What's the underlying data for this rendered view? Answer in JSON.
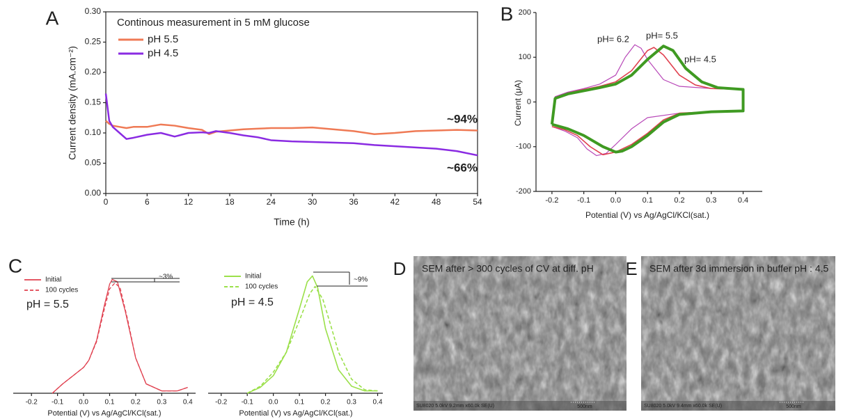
{
  "chart_data": [
    {
      "type": "line",
      "panel_label": "A",
      "title": "Continous measurement in 5 mM glucose",
      "x_label": "Time (h)",
      "y_label": "Current density (mA.cm⁻²)",
      "x": [
        0,
        0.5,
        1,
        2,
        3,
        4,
        6,
        8,
        10,
        12,
        14,
        15,
        16,
        18,
        20,
        22,
        24,
        27,
        30,
        33,
        36,
        39,
        42,
        45,
        48,
        51,
        54
      ],
      "series": [
        {
          "name": "pH 5.5",
          "color": "#ef7a55",
          "values": [
            0.12,
            0.115,
            0.112,
            0.11,
            0.108,
            0.11,
            0.11,
            0.114,
            0.112,
            0.108,
            0.105,
            0.098,
            0.102,
            0.104,
            0.106,
            0.107,
            0.108,
            0.108,
            0.109,
            0.106,
            0.103,
            0.098,
            0.1,
            0.103,
            0.104,
            0.105,
            0.104
          ]
        },
        {
          "name": "pH 4.5",
          "color": "#8a2be2",
          "values": [
            0.165,
            0.12,
            0.11,
            0.1,
            0.09,
            0.092,
            0.097,
            0.1,
            0.094,
            0.1,
            0.101,
            0.1,
            0.103,
            0.1,
            0.096,
            0.093,
            0.088,
            0.086,
            0.085,
            0.084,
            0.083,
            0.08,
            0.078,
            0.076,
            0.074,
            0.07,
            0.063
          ]
        }
      ],
      "annotations": [
        "~94%",
        "~66%"
      ],
      "xlim": [
        0,
        54
      ],
      "xticks": [
        0,
        6,
        12,
        18,
        24,
        30,
        36,
        42,
        48,
        54
      ],
      "ylim": [
        0,
        0.3
      ],
      "yticks": [
        {
          "value": 0,
          "label": "0.00"
        },
        {
          "value": 0.05,
          "label": "0.05"
        },
        {
          "value": 0.1,
          "label": "0.10"
        },
        {
          "value": 0.15,
          "label": "0.15"
        },
        {
          "value": 0.2,
          "label": "0.20"
        },
        {
          "value": 0.25,
          "label": "0.25"
        },
        {
          "value": 0.3,
          "label": "0.30"
        }
      ]
    },
    {
      "type": "line",
      "panel_label": "B",
      "x_label": "Potential (V) vs Ag/AgCl/KCl(sat.)",
      "y_label": "Current (μA)",
      "series": [
        {
          "name": "pH= 6.2",
          "color": "#b848b8",
          "x": [
            -0.2,
            -0.19,
            -0.15,
            -0.1,
            -0.05,
            0,
            0.03,
            0.06,
            0.08,
            0.1,
            0.15,
            0.2,
            0.3,
            0.4,
            0.4,
            0.3,
            0.2,
            0.1,
            0.05,
            0,
            -0.03,
            -0.06,
            -0.09,
            -0.12,
            -0.16,
            -0.2
          ],
          "values": [
            -50,
            12,
            22,
            30,
            40,
            60,
            100,
            128,
            120,
            95,
            50,
            35,
            30,
            28,
            -20,
            -22,
            -25,
            -35,
            -60,
            -95,
            -115,
            -120,
            -105,
            -80,
            -65,
            -55
          ]
        },
        {
          "name": "pH= 5.5",
          "color": "#e0404f",
          "x": [
            -0.2,
            -0.19,
            -0.15,
            -0.1,
            -0.05,
            0,
            0.05,
            0.1,
            0.12,
            0.15,
            0.2,
            0.25,
            0.3,
            0.4,
            0.4,
            0.3,
            0.2,
            0.15,
            0.1,
            0.05,
            0,
            -0.04,
            -0.08,
            -0.12,
            -0.16,
            -0.2
          ],
          "values": [
            -50,
            10,
            20,
            28,
            35,
            45,
            70,
            115,
            122,
            105,
            60,
            38,
            30,
            28,
            -20,
            -22,
            -25,
            -40,
            -70,
            -95,
            -112,
            -118,
            -100,
            -75,
            -62,
            -55
          ]
        },
        {
          "name": "pH= 4.5",
          "color": "#3f9a22",
          "x": [
            -0.2,
            -0.19,
            -0.15,
            -0.1,
            -0.05,
            0,
            0.05,
            0.1,
            0.15,
            0.18,
            0.22,
            0.27,
            0.32,
            0.4,
            0.4,
            0.3,
            0.2,
            0.15,
            0.1,
            0.05,
            0.02,
            0,
            -0.04,
            -0.1,
            -0.15,
            -0.2
          ],
          "values": [
            -50,
            8,
            18,
            25,
            32,
            40,
            60,
            95,
            125,
            115,
            75,
            45,
            32,
            28,
            -20,
            -22,
            -28,
            -45,
            -75,
            -100,
            -110,
            -112,
            -100,
            -75,
            -60,
            -50
          ]
        }
      ],
      "xlim": [
        -0.25,
        0.46
      ],
      "xticks": [
        -0.2,
        -0.1,
        {
          "value": 0,
          "label": "0.0"
        },
        0.1,
        0.2,
        0.3,
        0.4
      ],
      "ylim": [
        -200,
        200
      ],
      "yticks": [
        -200,
        -100,
        0,
        100,
        200
      ]
    },
    {
      "type": "line",
      "panel_label": "C",
      "x_label": "Potential (V) vs Ag/AgCl/KCl(sat.)",
      "annotations": [
        "~3%",
        "pH = 5.5"
      ],
      "series": [
        {
          "name": "Initial",
          "color": "#e0404f",
          "dash": false,
          "x": [
            -0.12,
            -0.08,
            -0.04,
            0,
            0.02,
            0.05,
            0.08,
            0.1,
            0.11,
            0.13,
            0.16,
            0.2,
            0.24,
            0.3,
            0.36,
            0.4
          ],
          "values": [
            0,
            0.08,
            0.15,
            0.22,
            0.28,
            0.45,
            0.75,
            0.93,
            0.97,
            0.95,
            0.7,
            0.3,
            0.08,
            0.02,
            0.02,
            0.05
          ]
        },
        {
          "name": "100 cycles",
          "color": "#e0404f",
          "dash": true,
          "x": [
            -0.12,
            -0.08,
            -0.04,
            0,
            0.02,
            0.05,
            0.08,
            0.1,
            0.12,
            0.14,
            0.17,
            0.2,
            0.24,
            0.3,
            0.36,
            0.4
          ],
          "values": [
            0,
            0.08,
            0.15,
            0.22,
            0.28,
            0.44,
            0.72,
            0.89,
            0.94,
            0.9,
            0.62,
            0.3,
            0.08,
            0.02,
            0.02,
            0.05
          ]
        }
      ],
      "xlim": [
        -0.27,
        0.43
      ],
      "xticks": [
        -0.2,
        -0.1,
        {
          "value": 0,
          "label": "0.0"
        },
        0.1,
        0.2,
        0.3,
        0.4
      ],
      "ylim": [
        0,
        1.05
      ]
    },
    {
      "type": "line",
      "x_label": "Potential (V) vs Ag/AgCl/KCl(sat.)",
      "annotations": [
        "~9%",
        "pH = 4.5"
      ],
      "series": [
        {
          "name": "Initial",
          "color": "#9be04a",
          "dash": false,
          "x": [
            -0.1,
            -0.05,
            0,
            0.05,
            0.1,
            0.13,
            0.15,
            0.17,
            0.2,
            0.25,
            0.3,
            0.35,
            0.4
          ],
          "values": [
            0,
            0.05,
            0.15,
            0.35,
            0.72,
            0.95,
            1.0,
            0.9,
            0.55,
            0.2,
            0.06,
            0.02,
            0.02
          ]
        },
        {
          "name": "100 cycles",
          "color": "#9be04a",
          "dash": true,
          "x": [
            -0.1,
            -0.05,
            0,
            0.05,
            0.1,
            0.14,
            0.16,
            0.19,
            0.22,
            0.25,
            0.3,
            0.35,
            0.4
          ],
          "values": [
            0,
            0.06,
            0.18,
            0.35,
            0.62,
            0.85,
            0.91,
            0.8,
            0.58,
            0.35,
            0.12,
            0.03,
            0.02
          ]
        }
      ],
      "xlim": [
        -0.25,
        0.42
      ],
      "xticks": [
        -0.2,
        -0.1,
        {
          "value": 0,
          "label": "0.0"
        },
        0.1,
        0.2,
        0.3,
        0.4
      ],
      "ylim": [
        0,
        1.05
      ]
    }
  ],
  "images": [
    {
      "panel_label": "D",
      "caption": "SEM after > 300 cycles of CV at diff. pH",
      "info": "SU8020 5.0kV 9.2mm x60.0k SE(U)",
      "scale": "500nm"
    },
    {
      "panel_label": "E",
      "caption": "SEM after  3d immersion in buffer pH : 4.5",
      "info": "SU8020 5.0kV 9.4mm x60.0k SE(U)",
      "scale": "500nm"
    }
  ]
}
